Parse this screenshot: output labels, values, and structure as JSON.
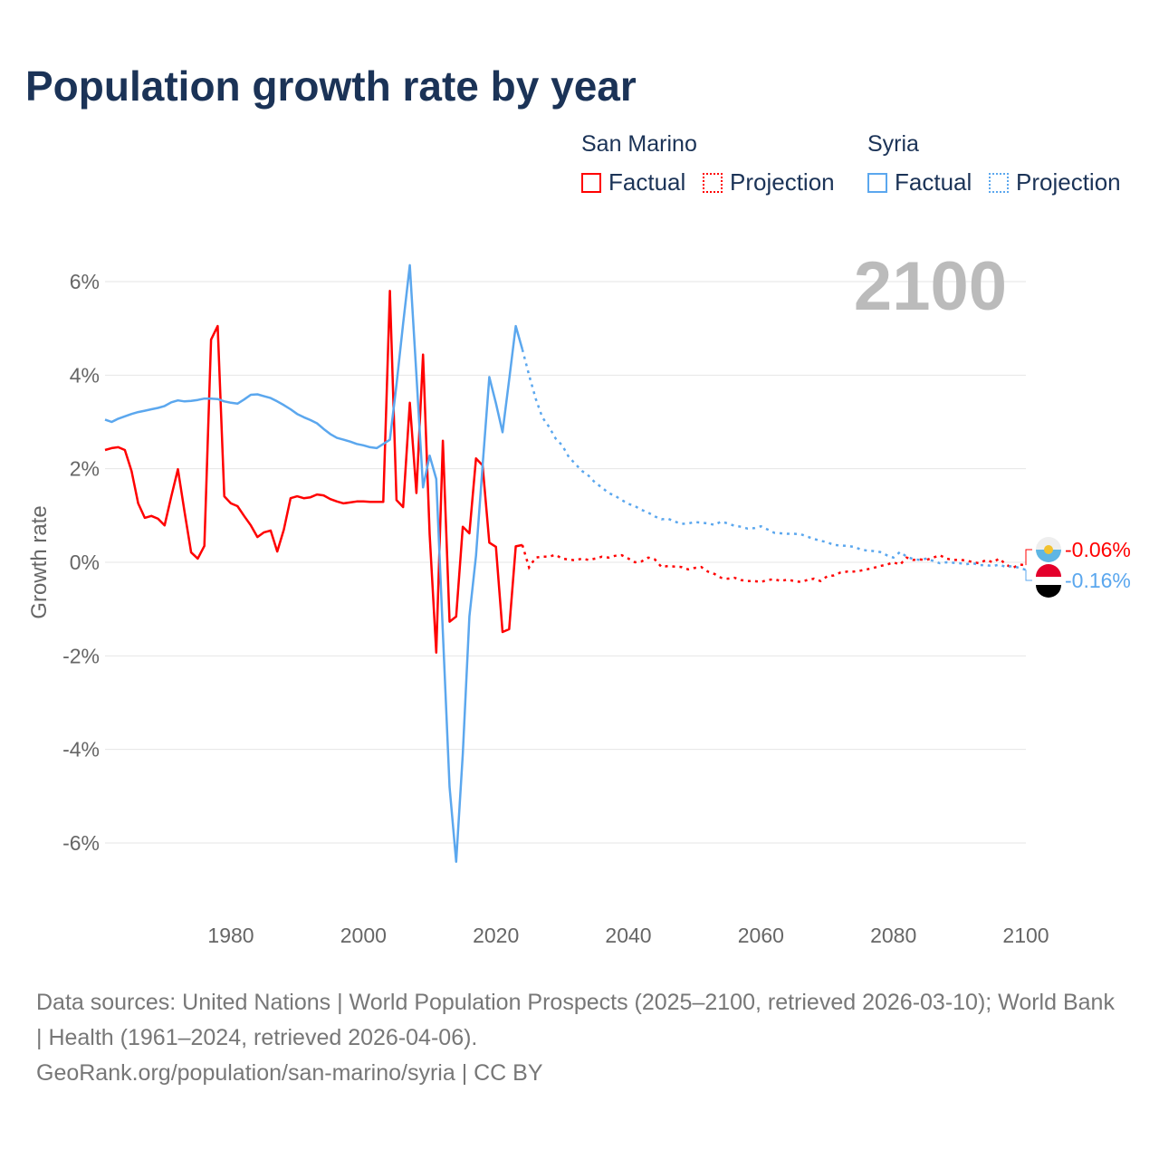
{
  "title": "Population growth rate by year",
  "legend": {
    "countries": [
      {
        "name": "San Marino",
        "color": "#ff0000",
        "factual": "Factual",
        "projection": "Projection"
      },
      {
        "name": "Syria",
        "color": "#5ba7ee",
        "factual": "Factual",
        "projection": "Projection"
      }
    ]
  },
  "footer": {
    "sources": "Data sources: United Nations | World Population Prospects (2025–2100, retrieved 2026-03-10); World Bank | Health (1961–2024, retrieved 2026-04-06).",
    "link": "GeoRank.org/population/san-marino/syria | CC BY"
  },
  "chart_data": {
    "type": "line",
    "title": "Population growth rate by year",
    "ylabel": "Growth rate",
    "xlabel": "",
    "year_label": "2100",
    "xlim": [
      1961,
      2100
    ],
    "ylim": [
      -7,
      7
    ],
    "yticks": [
      {
        "v": 6,
        "label": "6%"
      },
      {
        "v": 4,
        "label": "4%"
      },
      {
        "v": 2,
        "label": "2%"
      },
      {
        "v": 0,
        "label": "0%"
      },
      {
        "v": -2,
        "label": "-2%"
      },
      {
        "v": -4,
        "label": "-4%"
      },
      {
        "v": -6,
        "label": "-6%"
      }
    ],
    "xticks": [
      {
        "v": 1980,
        "label": "1980"
      },
      {
        "v": 2000,
        "label": "2000"
      },
      {
        "v": 2020,
        "label": "2020"
      },
      {
        "v": 2040,
        "label": "2040"
      },
      {
        "v": 2060,
        "label": "2060"
      },
      {
        "v": 2080,
        "label": "2080"
      },
      {
        "v": 2100,
        "label": "2100"
      }
    ],
    "series": [
      {
        "name": "San Marino",
        "color": "#ff0000",
        "end_label": "-0.06%",
        "factual_start": 1961,
        "factual": [
          2.4,
          2.44,
          2.46,
          2.4,
          1.95,
          1.26,
          0.95,
          0.99,
          0.93,
          0.79,
          1.41,
          1.99,
          1.08,
          0.21,
          0.08,
          0.35,
          4.76,
          5.05,
          1.41,
          1.26,
          1.2,
          0.99,
          0.79,
          0.54,
          0.64,
          0.68,
          0.23,
          0.7,
          1.37,
          1.41,
          1.37,
          1.39,
          1.45,
          1.43,
          1.35,
          1.3,
          1.26,
          1.28,
          1.3,
          1.3,
          1.29,
          1.29,
          1.29,
          5.8,
          1.33,
          1.18,
          3.41,
          1.48,
          4.44,
          0.6,
          -1.93,
          2.6,
          -1.27,
          -1.16,
          0.76,
          0.62,
          2.22,
          2.07,
          0.42,
          0.33,
          -1.49,
          -1.43,
          0.34,
          0.37
        ],
        "projection_start": 2024,
        "projection": [
          0.37,
          -0.11,
          0.1,
          0.12,
          0.12,
          0.16,
          0.08,
          0.06,
          0.04,
          0.08,
          0.05,
          0.08,
          0.12,
          0.1,
          0.14,
          0.15,
          0.08,
          0.0,
          0.02,
          0.1,
          0.06,
          -0.1,
          -0.08,
          -0.09,
          -0.1,
          -0.15,
          -0.12,
          -0.1,
          -0.2,
          -0.25,
          -0.33,
          -0.35,
          -0.33,
          -0.38,
          -0.4,
          -0.4,
          -0.42,
          -0.38,
          -0.36,
          -0.4,
          -0.37,
          -0.4,
          -0.42,
          -0.38,
          -0.35,
          -0.4,
          -0.3,
          -0.28,
          -0.22,
          -0.2,
          -0.2,
          -0.18,
          -0.15,
          -0.12,
          -0.08,
          -0.05,
          0.0,
          -0.05,
          0.1,
          0.05,
          0.06,
          0.05,
          0.1,
          0.15,
          0.08,
          0.05,
          0.05,
          0.04,
          0.0,
          -0.02,
          0.05,
          0.0,
          0.08,
          -0.05,
          -0.12,
          -0.05,
          -0.06
        ]
      },
      {
        "name": "Syria",
        "color": "#5ba7ee",
        "end_label": "-0.16%",
        "factual_start": 1961,
        "factual": [
          3.05,
          3.0,
          3.07,
          3.12,
          3.17,
          3.21,
          3.24,
          3.27,
          3.3,
          3.34,
          3.42,
          3.46,
          3.44,
          3.45,
          3.47,
          3.5,
          3.5,
          3.49,
          3.44,
          3.41,
          3.39,
          3.48,
          3.58,
          3.59,
          3.55,
          3.51,
          3.44,
          3.36,
          3.27,
          3.17,
          3.1,
          3.04,
          2.97,
          2.85,
          2.74,
          2.66,
          2.62,
          2.58,
          2.53,
          2.5,
          2.46,
          2.44,
          2.53,
          2.62,
          3.8,
          5.1,
          6.35,
          4.0,
          1.6,
          2.28,
          1.78,
          -1.5,
          -4.8,
          -6.4,
          -4.1,
          -1.16,
          0.14,
          2.07,
          3.96,
          3.4,
          2.78,
          3.9,
          5.05,
          4.55
        ],
        "projection_start": 2024,
        "projection": [
          4.55,
          4.0,
          3.5,
          3.1,
          2.9,
          2.65,
          2.5,
          2.25,
          2.1,
          1.95,
          1.85,
          1.7,
          1.6,
          1.48,
          1.42,
          1.33,
          1.25,
          1.2,
          1.12,
          1.06,
          0.98,
          0.92,
          0.93,
          0.87,
          0.82,
          0.83,
          0.86,
          0.85,
          0.83,
          0.8,
          0.87,
          0.83,
          0.78,
          0.76,
          0.72,
          0.73,
          0.77,
          0.7,
          0.63,
          0.62,
          0.61,
          0.61,
          0.6,
          0.55,
          0.5,
          0.46,
          0.43,
          0.37,
          0.36,
          0.35,
          0.33,
          0.28,
          0.25,
          0.24,
          0.22,
          0.15,
          0.1,
          0.22,
          0.12,
          0.07,
          0.05,
          0.08,
          0.03,
          -0.02,
          0.0,
          -0.01,
          -0.02,
          -0.04,
          -0.02,
          -0.06,
          -0.06,
          -0.08,
          -0.05,
          -0.1,
          -0.08,
          -0.12,
          -0.16
        ]
      }
    ]
  }
}
